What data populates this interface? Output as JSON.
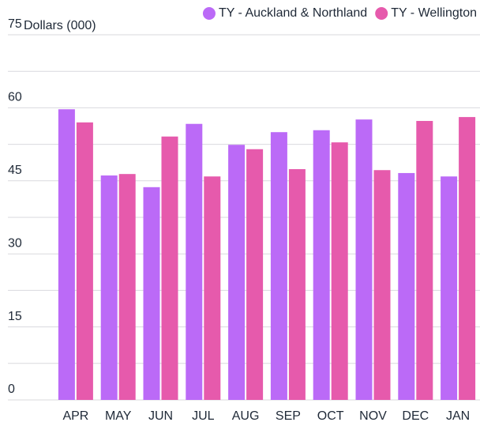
{
  "chart_data": {
    "type": "bar",
    "y_axis_label": "Dollars (000)",
    "categories": [
      "APR",
      "MAY",
      "JUN",
      "JUL",
      "AUG",
      "SEP",
      "OCT",
      "NOV",
      "DEC",
      "JAN"
    ],
    "series": [
      {
        "name": "TY - Auckland & Northland",
        "color": "#bb6af7",
        "values": [
          59.7,
          46.1,
          43.7,
          56.7,
          52.4,
          55.0,
          55.4,
          57.6,
          46.6,
          45.9
        ]
      },
      {
        "name": "TY - Wellington",
        "color": "#e65aac",
        "values": [
          57.0,
          46.4,
          54.1,
          45.9,
          51.5,
          47.4,
          52.9,
          47.2,
          57.3,
          58.1
        ]
      }
    ],
    "ylim": [
      0,
      75
    ],
    "yticks": [
      0,
      15,
      30,
      45,
      60,
      75
    ],
    "grid": true,
    "minor_grid": true,
    "legend": "top-right"
  }
}
